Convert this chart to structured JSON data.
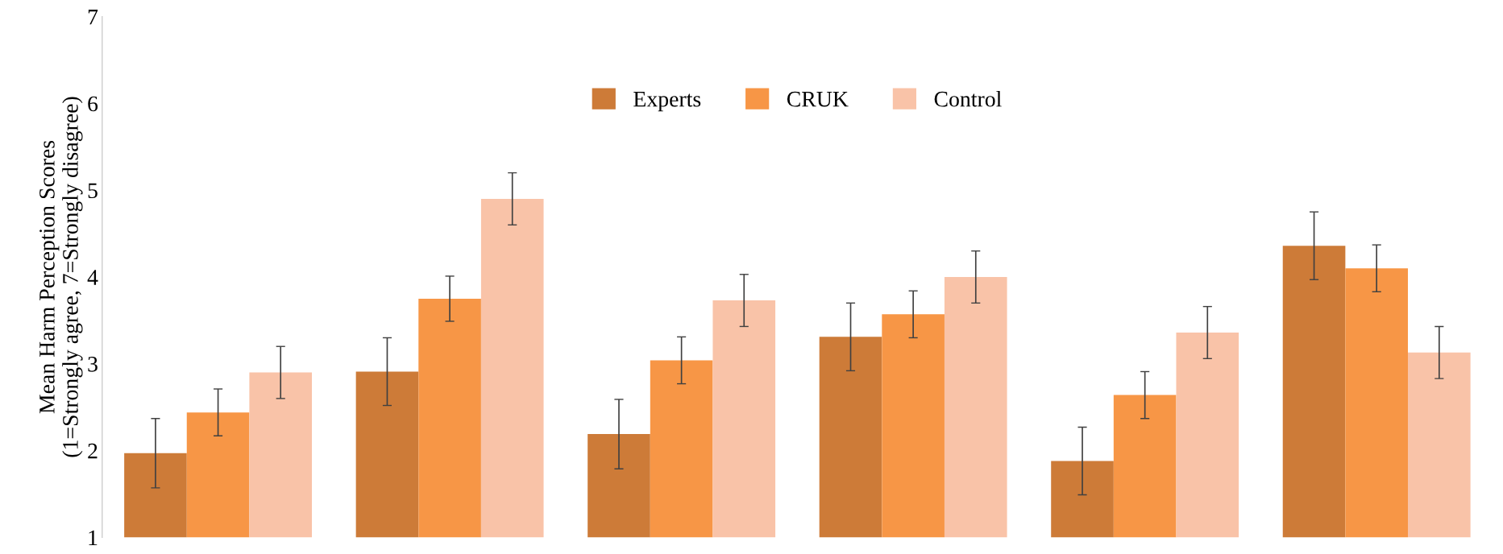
{
  "chart_data": {
    "type": "bar",
    "ylabel": "Mean Harm Perception Scores\n(1=Strongly agree, 7=Strongly disagree)",
    "categories": [
      null,
      null,
      null,
      null,
      null,
      null
    ],
    "series": [
      {
        "name": "Experts",
        "color": "#cd7b38",
        "values": [
          1.97,
          2.91,
          2.19,
          3.31,
          1.88,
          4.36
        ],
        "errors": [
          0.4,
          0.39,
          0.4,
          0.39,
          0.39,
          0.39
        ]
      },
      {
        "name": "CRUK",
        "color": "#f79646",
        "values": [
          2.44,
          3.75,
          3.04,
          3.57,
          2.64,
          4.1
        ],
        "errors": [
          0.27,
          0.26,
          0.27,
          0.27,
          0.27,
          0.27
        ]
      },
      {
        "name": "Control",
        "color": "#f9c3a8",
        "values": [
          2.9,
          4.9,
          3.73,
          4.0,
          3.36,
          3.13
        ],
        "errors": [
          0.3,
          0.3,
          0.3,
          0.3,
          0.3,
          0.3
        ]
      }
    ],
    "ylim": [
      1,
      7
    ],
    "yticks": [
      1,
      2,
      3,
      4,
      5,
      6,
      7
    ],
    "tick_labels": "y",
    "legend": "top",
    "grid": false
  }
}
